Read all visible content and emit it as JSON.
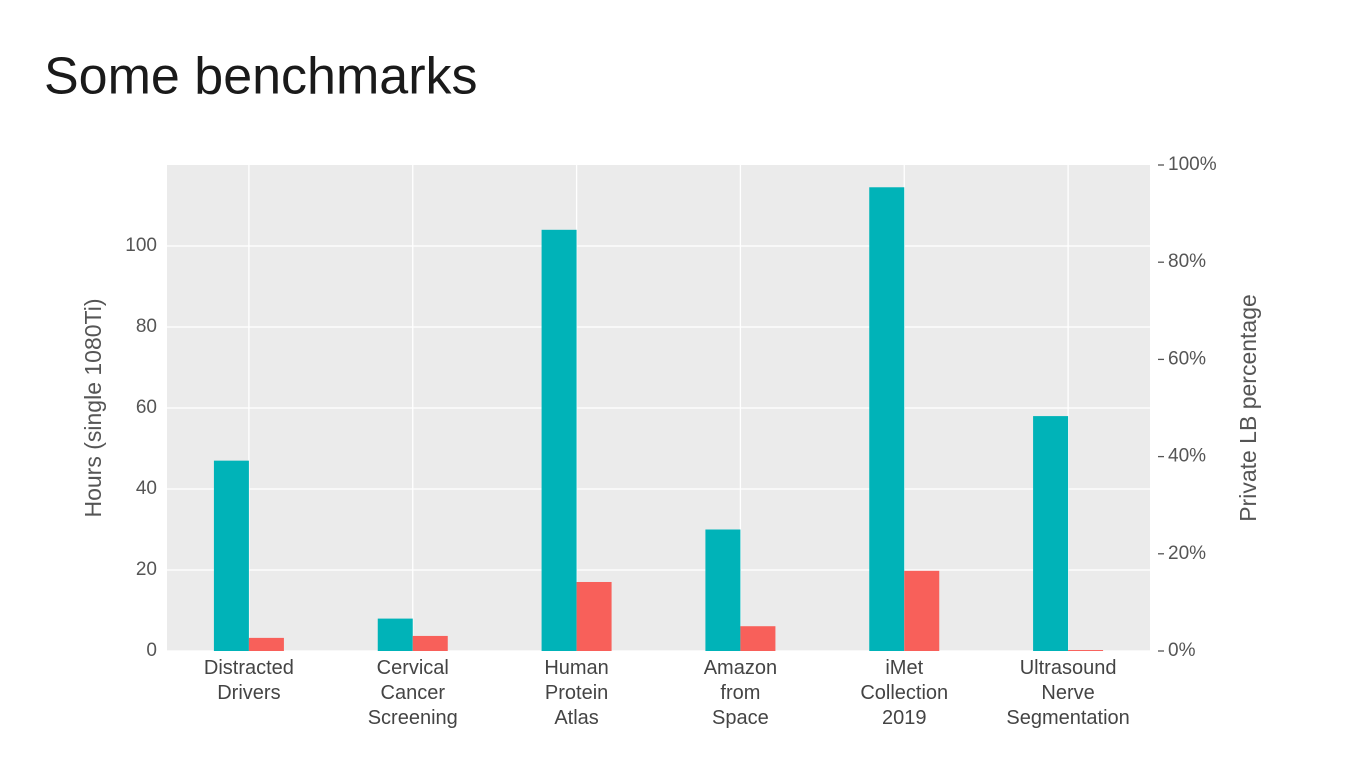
{
  "title": "Some benchmarks",
  "chart_data": {
    "type": "bar",
    "categories": [
      "Distracted\nDrivers",
      "Cervical\nCancer\nScreening",
      "Human\nProtein\nAtlas",
      "Amazon\nfrom\nSpace",
      "iMet\nCollection\n2019",
      "Ultrasound\nNerve\nSegmentation"
    ],
    "series": [
      {
        "color": "#00b3b8",
        "values": [
          47,
          8,
          104,
          30,
          114.5,
          58
        ]
      },
      {
        "color": "#f8605a",
        "axis": "y2",
        "values": [
          2.7,
          3.1,
          14.2,
          5.1,
          16.5,
          0.2
        ]
      }
    ],
    "ylabel": "Hours (single 1080Ti)",
    "y2label": "Private LB percentage",
    "ylim": [
      0,
      120
    ],
    "yticks": [
      0,
      20,
      40,
      60,
      80,
      100
    ],
    "y2lim": [
      0,
      100
    ],
    "y2ticks": [
      {
        "value": 0,
        "label": "0%"
      },
      {
        "value": 20,
        "label": "20%"
      },
      {
        "value": 40,
        "label": "40%"
      },
      {
        "value": 60,
        "label": "60%"
      },
      {
        "value": 80,
        "label": "80%"
      },
      {
        "value": 100,
        "label": "100%"
      }
    ],
    "grid": true
  }
}
